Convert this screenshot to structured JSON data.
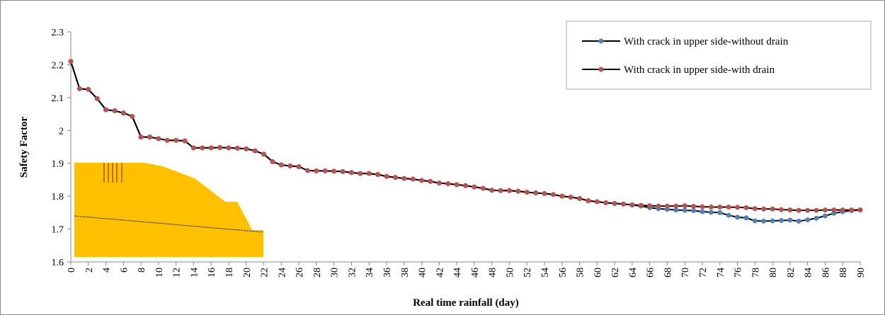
{
  "chart_data": {
    "type": "line",
    "x_label": "Real time rainfall (day)",
    "y_label": "Safety Factor",
    "x": [
      0,
      1,
      2,
      3,
      4,
      5,
      6,
      7,
      8,
      9,
      10,
      11,
      12,
      13,
      14,
      15,
      16,
      17,
      18,
      19,
      20,
      21,
      22,
      23,
      24,
      25,
      26,
      27,
      28,
      29,
      30,
      31,
      32,
      33,
      34,
      35,
      36,
      37,
      38,
      39,
      40,
      41,
      42,
      43,
      44,
      45,
      46,
      47,
      48,
      49,
      50,
      51,
      52,
      53,
      54,
      55,
      56,
      57,
      58,
      59,
      60,
      61,
      62,
      63,
      64,
      65,
      66,
      67,
      68,
      69,
      70,
      71,
      72,
      73,
      74,
      75,
      76,
      77,
      78,
      79,
      80,
      81,
      82,
      83,
      84,
      85,
      86,
      87,
      88,
      89,
      90
    ],
    "series": [
      {
        "name": "With crack in upper side-without drain",
        "color": "#4f81bd",
        "values": [
          2.21,
          2.127,
          2.125,
          2.097,
          2.063,
          2.06,
          2.053,
          2.043,
          1.98,
          1.98,
          1.975,
          1.97,
          1.97,
          1.968,
          1.947,
          1.947,
          1.947,
          1.948,
          1.947,
          1.946,
          1.944,
          1.938,
          1.928,
          1.905,
          1.895,
          1.892,
          1.89,
          1.878,
          1.877,
          1.877,
          1.876,
          1.875,
          1.872,
          1.869,
          1.869,
          1.866,
          1.86,
          1.857,
          1.854,
          1.852,
          1.848,
          1.845,
          1.84,
          1.838,
          1.835,
          1.832,
          1.828,
          1.824,
          1.818,
          1.817,
          1.817,
          1.815,
          1.812,
          1.81,
          1.808,
          1.805,
          1.8,
          1.797,
          1.793,
          1.786,
          1.783,
          1.78,
          1.778,
          1.776,
          1.773,
          1.77,
          1.765,
          1.762,
          1.76,
          1.758,
          1.757,
          1.756,
          1.753,
          1.751,
          1.75,
          1.742,
          1.736,
          1.734,
          1.725,
          1.724,
          1.725,
          1.726,
          1.727,
          1.724,
          1.728,
          1.733,
          1.74,
          1.748,
          1.753,
          1.756,
          1.758
        ]
      },
      {
        "name": "With crack in upper side-with drain",
        "color": "#c0504d",
        "values": [
          2.21,
          2.127,
          2.125,
          2.097,
          2.063,
          2.06,
          2.053,
          2.043,
          1.98,
          1.98,
          1.975,
          1.97,
          1.97,
          1.968,
          1.947,
          1.947,
          1.947,
          1.948,
          1.947,
          1.946,
          1.944,
          1.938,
          1.928,
          1.905,
          1.895,
          1.892,
          1.89,
          1.878,
          1.877,
          1.877,
          1.876,
          1.875,
          1.872,
          1.869,
          1.869,
          1.866,
          1.86,
          1.857,
          1.854,
          1.852,
          1.848,
          1.845,
          1.84,
          1.838,
          1.835,
          1.832,
          1.828,
          1.824,
          1.818,
          1.817,
          1.817,
          1.815,
          1.812,
          1.81,
          1.808,
          1.805,
          1.8,
          1.797,
          1.793,
          1.786,
          1.783,
          1.78,
          1.778,
          1.776,
          1.774,
          1.772,
          1.771,
          1.77,
          1.77,
          1.77,
          1.771,
          1.769,
          1.768,
          1.767,
          1.767,
          1.767,
          1.766,
          1.765,
          1.762,
          1.761,
          1.761,
          1.759,
          1.758,
          1.757,
          1.757,
          1.757,
          1.758,
          1.758,
          1.758,
          1.758,
          1.758
        ]
      }
    ],
    "line_color": "#000000",
    "xlim": [
      0,
      90
    ],
    "xticks": [
      0,
      2,
      4,
      6,
      8,
      10,
      12,
      14,
      16,
      18,
      20,
      22,
      24,
      26,
      28,
      30,
      32,
      34,
      36,
      38,
      40,
      42,
      44,
      46,
      48,
      50,
      52,
      54,
      56,
      58,
      60,
      62,
      64,
      66,
      68,
      70,
      72,
      74,
      76,
      78,
      80,
      82,
      84,
      86,
      88,
      90
    ],
    "ylim": [
      1.6,
      2.3
    ],
    "yticks": [
      1.6,
      1.7,
      1.8,
      1.9,
      2,
      2.1,
      2.2,
      2.3
    ],
    "grid": false,
    "legend": "top-right"
  }
}
